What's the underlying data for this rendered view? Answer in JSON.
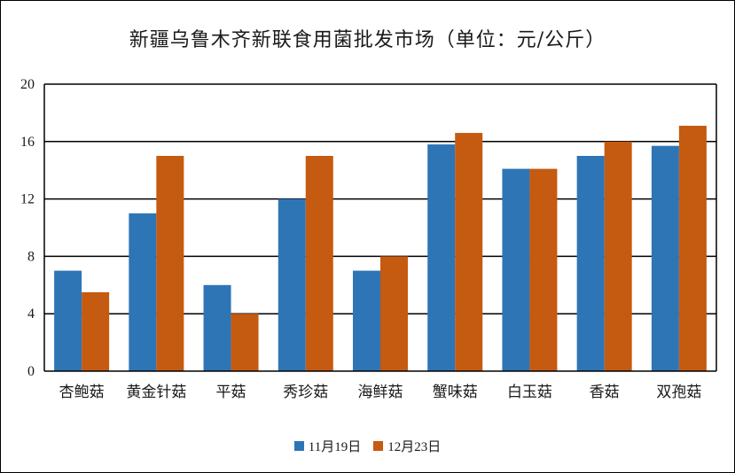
{
  "chart_data": {
    "type": "bar",
    "title": "新疆乌鲁木齐新联食用菌批发市场（单位：元/公斤）",
    "categories": [
      "杏鲍菇",
      "黄金针菇",
      "平菇",
      "秀珍菇",
      "海鲜菇",
      "蟹味菇",
      "白玉菇",
      "香菇",
      "双孢菇"
    ],
    "series": [
      {
        "name": "11月19日",
        "color": "#2E75B6",
        "values": [
          7,
          11,
          6,
          12,
          7,
          15.8,
          14.1,
          15,
          15.7
        ]
      },
      {
        "name": "12月23日",
        "color": "#C55A11",
        "values": [
          5.5,
          15,
          4,
          15,
          8,
          16.6,
          14.1,
          16,
          17.1
        ]
      }
    ],
    "ylim": [
      0,
      20
    ],
    "yticks": [
      0,
      4,
      8,
      12,
      16,
      20
    ],
    "xlabel": "",
    "ylabel": "",
    "grid": true,
    "legend_position": "bottom"
  }
}
